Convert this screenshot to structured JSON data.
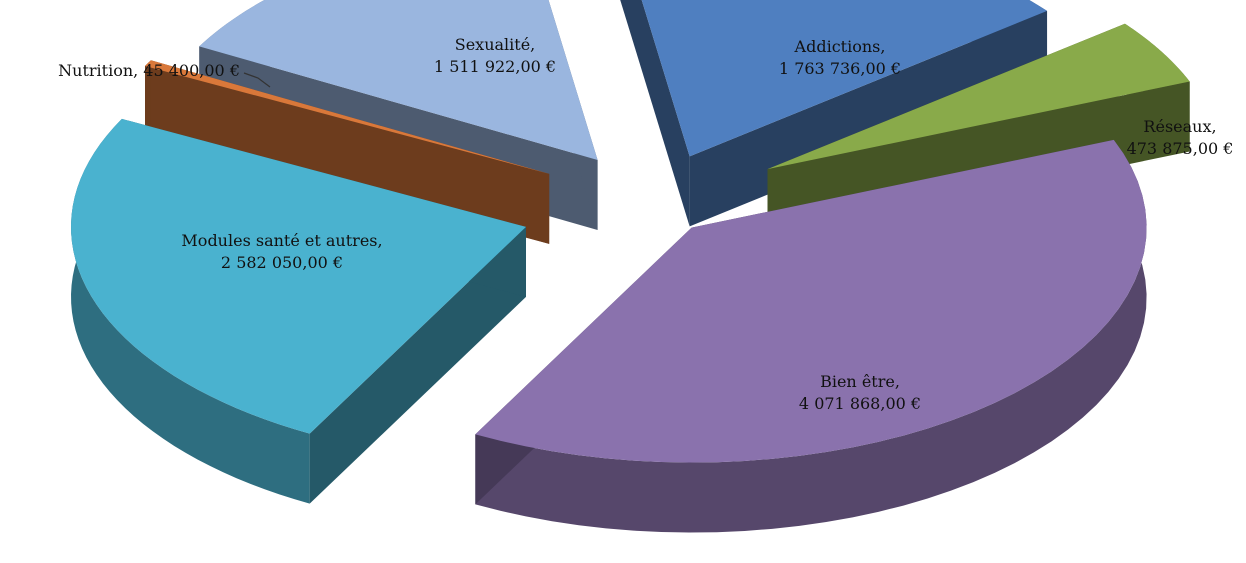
{
  "chart_data": {
    "type": "pie",
    "title": "",
    "exploded": true,
    "style": "3d",
    "slices": [
      {
        "label": "Addictions",
        "value_text": "1 763 736,00 €",
        "value": 1763736,
        "color": "#4f7fc0"
      },
      {
        "label": "Réseaux",
        "value_text": "473 875,00 €",
        "value": 473875,
        "color": "#89aa4a"
      },
      {
        "label": "Bien être",
        "value_text": "4 071 868,00 €",
        "value": 4071868,
        "color": "#8a72ad"
      },
      {
        "label": "Modules santé et autres",
        "value_text": "2 582 050,00 €",
        "value": 2582050,
        "color": "#4ab2cf"
      },
      {
        "label": "Nutrition",
        "value_text": "45 400,00 €",
        "value": 45400,
        "color": "#d9783a"
      },
      {
        "label": "Sexualité",
        "value_text": "1 511 922,00 €",
        "value": 1511922,
        "color": "#9ab6df"
      }
    ]
  }
}
